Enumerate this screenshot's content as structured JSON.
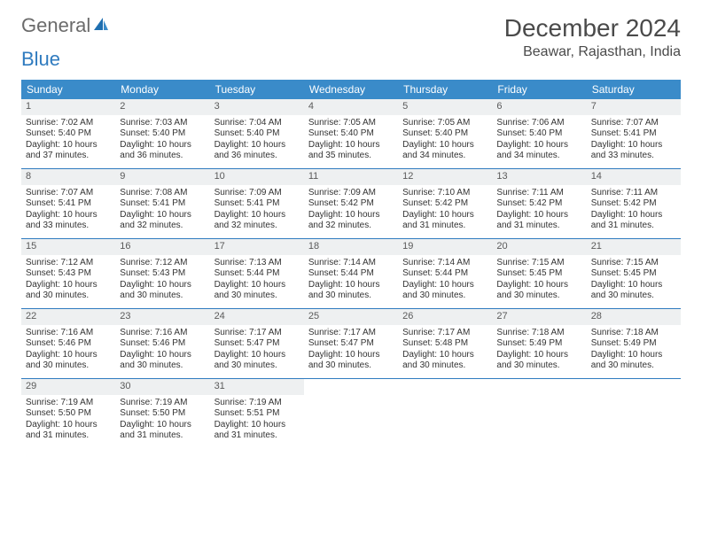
{
  "logo": {
    "word1": "General",
    "word2": "Blue"
  },
  "header": {
    "month_title": "December 2024",
    "location": "Beawar, Rajasthan, India"
  },
  "colors": {
    "header_bar": "#3a8bc9",
    "row_divider": "#2f7bbf",
    "daynum_bg": "#eef0f1",
    "text": "#333333",
    "logo_gray": "#6b6b6b",
    "logo_blue": "#2f7bbf"
  },
  "weekdays": [
    "Sunday",
    "Monday",
    "Tuesday",
    "Wednesday",
    "Thursday",
    "Friday",
    "Saturday"
  ],
  "weeks": [
    [
      {
        "day": "1",
        "sunrise": "Sunrise: 7:02 AM",
        "sunset": "Sunset: 5:40 PM",
        "daylight": "Daylight: 10 hours and 37 minutes."
      },
      {
        "day": "2",
        "sunrise": "Sunrise: 7:03 AM",
        "sunset": "Sunset: 5:40 PM",
        "daylight": "Daylight: 10 hours and 36 minutes."
      },
      {
        "day": "3",
        "sunrise": "Sunrise: 7:04 AM",
        "sunset": "Sunset: 5:40 PM",
        "daylight": "Daylight: 10 hours and 36 minutes."
      },
      {
        "day": "4",
        "sunrise": "Sunrise: 7:05 AM",
        "sunset": "Sunset: 5:40 PM",
        "daylight": "Daylight: 10 hours and 35 minutes."
      },
      {
        "day": "5",
        "sunrise": "Sunrise: 7:05 AM",
        "sunset": "Sunset: 5:40 PM",
        "daylight": "Daylight: 10 hours and 34 minutes."
      },
      {
        "day": "6",
        "sunrise": "Sunrise: 7:06 AM",
        "sunset": "Sunset: 5:40 PM",
        "daylight": "Daylight: 10 hours and 34 minutes."
      },
      {
        "day": "7",
        "sunrise": "Sunrise: 7:07 AM",
        "sunset": "Sunset: 5:41 PM",
        "daylight": "Daylight: 10 hours and 33 minutes."
      }
    ],
    [
      {
        "day": "8",
        "sunrise": "Sunrise: 7:07 AM",
        "sunset": "Sunset: 5:41 PM",
        "daylight": "Daylight: 10 hours and 33 minutes."
      },
      {
        "day": "9",
        "sunrise": "Sunrise: 7:08 AM",
        "sunset": "Sunset: 5:41 PM",
        "daylight": "Daylight: 10 hours and 32 minutes."
      },
      {
        "day": "10",
        "sunrise": "Sunrise: 7:09 AM",
        "sunset": "Sunset: 5:41 PM",
        "daylight": "Daylight: 10 hours and 32 minutes."
      },
      {
        "day": "11",
        "sunrise": "Sunrise: 7:09 AM",
        "sunset": "Sunset: 5:42 PM",
        "daylight": "Daylight: 10 hours and 32 minutes."
      },
      {
        "day": "12",
        "sunrise": "Sunrise: 7:10 AM",
        "sunset": "Sunset: 5:42 PM",
        "daylight": "Daylight: 10 hours and 31 minutes."
      },
      {
        "day": "13",
        "sunrise": "Sunrise: 7:11 AM",
        "sunset": "Sunset: 5:42 PM",
        "daylight": "Daylight: 10 hours and 31 minutes."
      },
      {
        "day": "14",
        "sunrise": "Sunrise: 7:11 AM",
        "sunset": "Sunset: 5:42 PM",
        "daylight": "Daylight: 10 hours and 31 minutes."
      }
    ],
    [
      {
        "day": "15",
        "sunrise": "Sunrise: 7:12 AM",
        "sunset": "Sunset: 5:43 PM",
        "daylight": "Daylight: 10 hours and 30 minutes."
      },
      {
        "day": "16",
        "sunrise": "Sunrise: 7:12 AM",
        "sunset": "Sunset: 5:43 PM",
        "daylight": "Daylight: 10 hours and 30 minutes."
      },
      {
        "day": "17",
        "sunrise": "Sunrise: 7:13 AM",
        "sunset": "Sunset: 5:44 PM",
        "daylight": "Daylight: 10 hours and 30 minutes."
      },
      {
        "day": "18",
        "sunrise": "Sunrise: 7:14 AM",
        "sunset": "Sunset: 5:44 PM",
        "daylight": "Daylight: 10 hours and 30 minutes."
      },
      {
        "day": "19",
        "sunrise": "Sunrise: 7:14 AM",
        "sunset": "Sunset: 5:44 PM",
        "daylight": "Daylight: 10 hours and 30 minutes."
      },
      {
        "day": "20",
        "sunrise": "Sunrise: 7:15 AM",
        "sunset": "Sunset: 5:45 PM",
        "daylight": "Daylight: 10 hours and 30 minutes."
      },
      {
        "day": "21",
        "sunrise": "Sunrise: 7:15 AM",
        "sunset": "Sunset: 5:45 PM",
        "daylight": "Daylight: 10 hours and 30 minutes."
      }
    ],
    [
      {
        "day": "22",
        "sunrise": "Sunrise: 7:16 AM",
        "sunset": "Sunset: 5:46 PM",
        "daylight": "Daylight: 10 hours and 30 minutes."
      },
      {
        "day": "23",
        "sunrise": "Sunrise: 7:16 AM",
        "sunset": "Sunset: 5:46 PM",
        "daylight": "Daylight: 10 hours and 30 minutes."
      },
      {
        "day": "24",
        "sunrise": "Sunrise: 7:17 AM",
        "sunset": "Sunset: 5:47 PM",
        "daylight": "Daylight: 10 hours and 30 minutes."
      },
      {
        "day": "25",
        "sunrise": "Sunrise: 7:17 AM",
        "sunset": "Sunset: 5:47 PM",
        "daylight": "Daylight: 10 hours and 30 minutes."
      },
      {
        "day": "26",
        "sunrise": "Sunrise: 7:17 AM",
        "sunset": "Sunset: 5:48 PM",
        "daylight": "Daylight: 10 hours and 30 minutes."
      },
      {
        "day": "27",
        "sunrise": "Sunrise: 7:18 AM",
        "sunset": "Sunset: 5:49 PM",
        "daylight": "Daylight: 10 hours and 30 minutes."
      },
      {
        "day": "28",
        "sunrise": "Sunrise: 7:18 AM",
        "sunset": "Sunset: 5:49 PM",
        "daylight": "Daylight: 10 hours and 30 minutes."
      }
    ],
    [
      {
        "day": "29",
        "sunrise": "Sunrise: 7:19 AM",
        "sunset": "Sunset: 5:50 PM",
        "daylight": "Daylight: 10 hours and 31 minutes."
      },
      {
        "day": "30",
        "sunrise": "Sunrise: 7:19 AM",
        "sunset": "Sunset: 5:50 PM",
        "daylight": "Daylight: 10 hours and 31 minutes."
      },
      {
        "day": "31",
        "sunrise": "Sunrise: 7:19 AM",
        "sunset": "Sunset: 5:51 PM",
        "daylight": "Daylight: 10 hours and 31 minutes."
      },
      null,
      null,
      null,
      null
    ]
  ]
}
